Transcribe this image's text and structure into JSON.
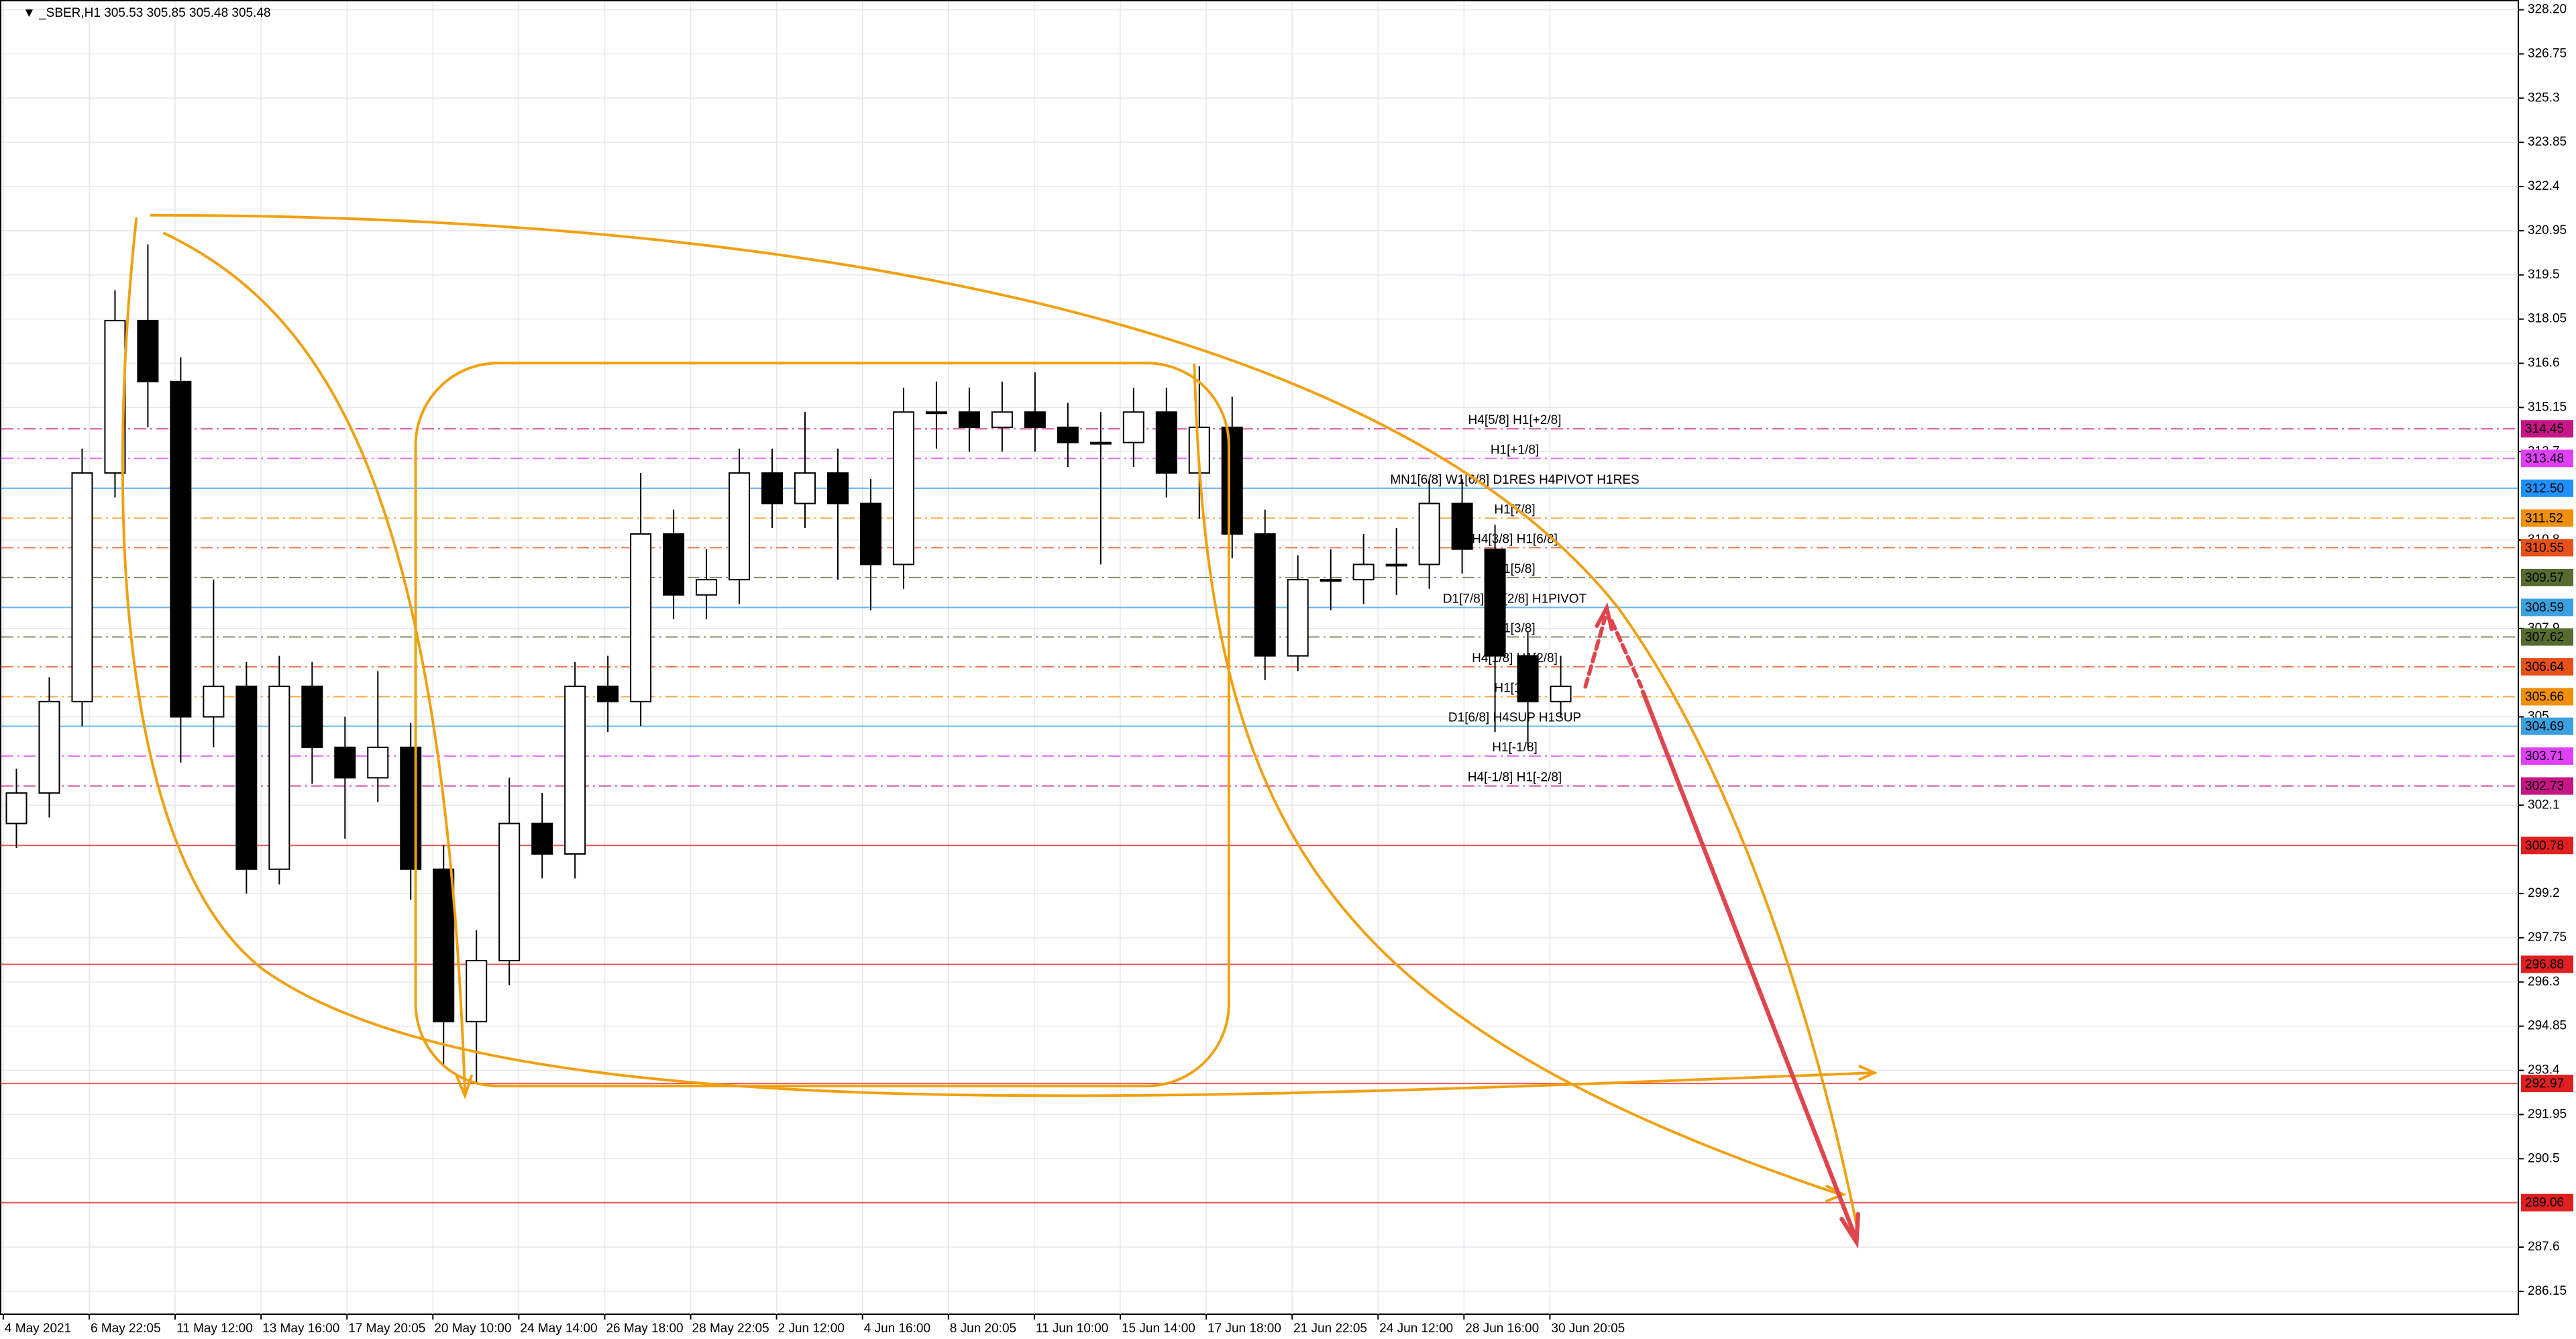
{
  "chart_data": {
    "type": "candlestick",
    "title": "▼ _SBER,H1  305.53 305.85 305.48 305.48",
    "ylim": [
      285.4,
      328.52
    ],
    "yticks": [
      {
        "value": 328.2,
        "label": "328.20"
      },
      326.75,
      325.3,
      {
        "value": 325.3,
        "label": "325.30"
      },
      323.85,
      322.4,
      320.95,
      319.5,
      318.05,
      316.6,
      315.15,
      313.7,
      310.8,
      307.9,
      305.0,
      302.1,
      299.2,
      297.75,
      296.3,
      294.85,
      293.4,
      291.95,
      290.5,
      287.6,
      286.15
    ],
    "x_labels": [
      "4 May 2021",
      "6 May 22:05",
      "11 May 12:00",
      "13 May 16:00",
      "17 May 20:05",
      "20 May 10:00",
      "24 May 14:00",
      "26 May 18:00",
      "28 May 22:05",
      "2 Jun 12:00",
      "4 Jun 16:00",
      "8 Jun 20:05",
      "11 Jun 10:00",
      "15 Jun 14:00",
      "17 Jun 18:00",
      "21 Jun 22:05",
      "24 Jun 12:00",
      "28 Jun 16:00",
      "30 Jun 20:05"
    ],
    "open": [
      301.5,
      302.5,
      305.5,
      313,
      318,
      316,
      305,
      306,
      300,
      306,
      304,
      303,
      304,
      300,
      295,
      297,
      301.5,
      300.5,
      306,
      305.5,
      311,
      309,
      309.5,
      313,
      312,
      313,
      312,
      310,
      315,
      315,
      314.5,
      315,
      314.5,
      314,
      314,
      315,
      313,
      314.5,
      311,
      307,
      309.5,
      309.5,
      310,
      310,
      312,
      310.5,
      307,
      305.5
    ],
    "high": [
      303.3,
      306.3,
      313.8,
      319,
      320.5,
      316.8,
      309.5,
      306.8,
      307,
      306.8,
      305,
      306.5,
      304.8,
      300.8,
      298,
      303,
      302.5,
      306.8,
      307,
      313,
      311.8,
      310.5,
      313.8,
      313.8,
      315,
      313.8,
      312.8,
      315.8,
      316,
      315.8,
      316,
      316.3,
      315.3,
      315,
      315.8,
      315.8,
      316.5,
      315.5,
      311.8,
      310.3,
      310.5,
      311,
      311.2,
      312.8,
      312.8,
      311.3,
      307.8,
      307
    ],
    "low": [
      300.7,
      301.7,
      304.7,
      312.2,
      314.5,
      303.5,
      304,
      299.2,
      299.5,
      302.8,
      301,
      302.2,
      299,
      293.5,
      293,
      296.2,
      299.7,
      299.7,
      304.5,
      304.7,
      308.2,
      308.2,
      308.7,
      311.2,
      311.2,
      309.5,
      308.5,
      309.2,
      313.8,
      313.7,
      313.7,
      313.7,
      313.2,
      310,
      313.2,
      312.2,
      311.5,
      310.2,
      306.2,
      306.5,
      308.5,
      308.7,
      309,
      309.2,
      309.7,
      304.5,
      304,
      305
    ],
    "close": [
      302.5,
      305.5,
      313,
      318,
      316,
      305,
      306,
      300,
      306,
      304,
      303,
      304,
      300,
      295,
      297,
      301.5,
      300.5,
      306,
      305.5,
      311,
      309,
      309.5,
      313,
      312,
      313,
      312,
      310,
      315,
      315,
      314.5,
      315,
      314.5,
      314,
      314,
      315,
      313,
      314.5,
      311,
      307,
      309.5,
      309.5,
      310,
      310,
      312,
      310.5,
      307,
      305.5,
      306
    ],
    "levels": {
      "values": [
        314.45,
        313.48,
        312.5,
        311.52,
        310.55,
        309.57,
        308.59,
        307.62,
        306.64,
        305.66,
        304.69,
        303.71,
        302.73,
        300.78,
        296.88,
        292.97,
        289.06
      ],
      "value_labels": [
        "314.45",
        "313.48",
        "312.50",
        "311.52",
        "310.55",
        "309.57",
        "308.59",
        "307.62",
        "306.64",
        "305.66",
        "304.69",
        "303.71",
        "302.73",
        "300.78",
        "296.88",
        "292.97",
        "289.06"
      ],
      "colors": [
        "#c71585",
        "#e040fb",
        "#1e90ff",
        "#f0900a",
        "#e8501a",
        "#556b2f",
        "#3aa0e0",
        "#556b2f",
        "#e8501a",
        "#f0900a",
        "#3aa0e0",
        "#e040fb",
        "#c71585",
        "#e02020",
        "#e02020",
        "#e02020",
        "#e02020"
      ],
      "dashed": [
        true,
        true,
        false,
        true,
        true,
        true,
        false,
        true,
        true,
        true,
        false,
        true,
        true,
        false,
        false,
        false,
        false
      ],
      "notes": [
        "H4[5/8] H1[+2/8]",
        "H1[+1/8]",
        "MN1[6/8] W1[6/8] D1RES H4PIVOT H1RES",
        "H1[7/8]",
        "H4[3/8] H1[6/8]",
        "H1[5/8]",
        "D1[7/8] H4[2/8] H1PIVOT",
        "H1[3/8]",
        "H4[1/8] H1[2/8]",
        "H1[1/8]",
        "D1[6/8] H4SUP H1SUP",
        "H1[-1/8]",
        "H4[-1/8] H1[-2/8]",
        null,
        null,
        null,
        null
      ]
    }
  }
}
